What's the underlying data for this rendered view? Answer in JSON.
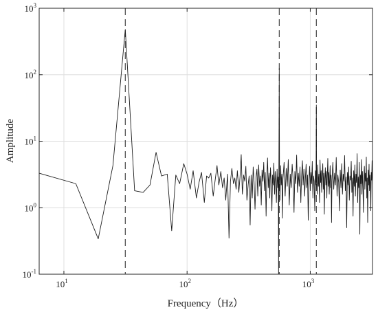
{
  "chart_data": {
    "type": "line",
    "title": "",
    "xlabel": "Frequency（Hz）",
    "ylabel": "Amplitude",
    "xscale": "log",
    "yscale": "log",
    "xlim": [
      6.3,
      3200
    ],
    "ylim": [
      0.1,
      1000
    ],
    "grid": true,
    "legend": "none",
    "x_ticks": [
      {
        "value": 10,
        "base": "10",
        "exp": "1"
      },
      {
        "value": 100,
        "base": "10",
        "exp": "2"
      },
      {
        "value": 1000,
        "base": "10",
        "exp": "3"
      }
    ],
    "y_ticks": [
      {
        "value": 0.1,
        "base": "10",
        "exp": "-1"
      },
      {
        "value": 1,
        "base": "10",
        "exp": "0"
      },
      {
        "value": 10,
        "base": "10",
        "exp": "1"
      },
      {
        "value": 100,
        "base": "10",
        "exp": "2"
      },
      {
        "value": 1000,
        "base": "10",
        "exp": "3"
      }
    ],
    "reference_lines_x": [
      31.5,
      560,
      1120
    ],
    "line_color": "#1a1a1a",
    "series": [
      {
        "values": [
          [
            6.3,
            3.3
          ],
          [
            12.5,
            2.3
          ],
          [
            19,
            0.34
          ],
          [
            25,
            4.3
          ],
          [
            31.5,
            480
          ],
          [
            37.5,
            1.8
          ],
          [
            44,
            1.7
          ],
          [
            50,
            2.2
          ],
          [
            56,
            6.8
          ],
          [
            62,
            3.0
          ],
          [
            69,
            3.2
          ],
          [
            75,
            0.45
          ],
          [
            81,
            3.1
          ],
          [
            87,
            2.3
          ],
          [
            94,
            4.6
          ],
          [
            100,
            3.2
          ],
          [
            106,
            1.9
          ],
          [
            112,
            3.6
          ],
          [
            119,
            1.4
          ],
          [
            125,
            2.4
          ],
          [
            131,
            3.4
          ],
          [
            138,
            1.2
          ],
          [
            144,
            3.0
          ],
          [
            150,
            2.8
          ],
          [
            156,
            3.3
          ],
          [
            163,
            1.5
          ],
          [
            169,
            2.6
          ],
          [
            175,
            4.3
          ],
          [
            181,
            2.2
          ],
          [
            188,
            3.5
          ],
          [
            194,
            2.0
          ],
          [
            200,
            2.8
          ],
          [
            206,
            1.3
          ],
          [
            213,
            3.2
          ],
          [
            219,
            0.35
          ],
          [
            225,
            2.5
          ],
          [
            231,
            3.9
          ],
          [
            238,
            2.3
          ],
          [
            244,
            2.8
          ],
          [
            250,
            1.9
          ],
          [
            256,
            3.6
          ],
          [
            263,
            1.7
          ],
          [
            269,
            2.9
          ],
          [
            275,
            6.3
          ],
          [
            281,
            1.6
          ],
          [
            288,
            3.1
          ],
          [
            294,
            2.5
          ],
          [
            300,
            4.2
          ],
          [
            306,
            1.3
          ],
          [
            313,
            2.2
          ],
          [
            319,
            3.0
          ],
          [
            325,
            0.55
          ],
          [
            331,
            3.1
          ],
          [
            338,
            1.4
          ],
          [
            344,
            4.1
          ],
          [
            350,
            2.4
          ],
          [
            356,
            0.95
          ],
          [
            363,
            2.9
          ],
          [
            369,
            3.8
          ],
          [
            375,
            1.5
          ],
          [
            381,
            4.4
          ],
          [
            388,
            2.1
          ],
          [
            394,
            3.0
          ],
          [
            400,
            1.1
          ],
          [
            406,
            3.7
          ],
          [
            413,
            2.5
          ],
          [
            419,
            4.8
          ],
          [
            425,
            1.8
          ],
          [
            431,
            3.4
          ],
          [
            438,
            0.75
          ],
          [
            444,
            2.9
          ],
          [
            450,
            5.6
          ],
          [
            456,
            2.0
          ],
          [
            463,
            3.3
          ],
          [
            469,
            1.4
          ],
          [
            475,
            4.0
          ],
          [
            481,
            2.6
          ],
          [
            488,
            0.9
          ],
          [
            494,
            3.1
          ],
          [
            500,
            2.2
          ],
          [
            506,
            4.7
          ],
          [
            513,
            1.6
          ],
          [
            519,
            3.5
          ],
          [
            525,
            2.4
          ],
          [
            531,
            1.2
          ],
          [
            538,
            3.8
          ],
          [
            544,
            2.0
          ],
          [
            550,
            2.9
          ],
          [
            553,
            0.1
          ],
          [
            556,
            3.5
          ],
          [
            560,
            125
          ],
          [
            563,
            2.5
          ],
          [
            567,
            1.3
          ],
          [
            575,
            4.3
          ],
          [
            581,
            2.2
          ],
          [
            588,
            3.2
          ],
          [
            594,
            0.7
          ],
          [
            600,
            2.7
          ],
          [
            613,
            4.8
          ],
          [
            625,
            1.5
          ],
          [
            638,
            3.9
          ],
          [
            650,
            2.1
          ],
          [
            663,
            5.3
          ],
          [
            675,
            1.1
          ],
          [
            688,
            3.2
          ],
          [
            700,
            2.0
          ],
          [
            713,
            4.5
          ],
          [
            725,
            2.7
          ],
          [
            738,
            0.85
          ],
          [
            750,
            3.5
          ],
          [
            763,
            2.3
          ],
          [
            775,
            6.2
          ],
          [
            788,
            1.7
          ],
          [
            800,
            3.3
          ],
          [
            813,
            2.1
          ],
          [
            825,
            4.1
          ],
          [
            838,
            1.2
          ],
          [
            850,
            3.0
          ],
          [
            863,
            5.1
          ],
          [
            875,
            2.2
          ],
          [
            888,
            3.8
          ],
          [
            900,
            1.5
          ],
          [
            913,
            2.8
          ],
          [
            925,
            4.5
          ],
          [
            938,
            2.0
          ],
          [
            950,
            3.1
          ],
          [
            963,
            0.65
          ],
          [
            975,
            2.6
          ],
          [
            988,
            4.2
          ],
          [
            1000,
            1.8
          ],
          [
            1013,
            3.4
          ],
          [
            1025,
            2.3
          ],
          [
            1038,
            5.0
          ],
          [
            1050,
            1.4
          ],
          [
            1063,
            3.0
          ],
          [
            1075,
            2.5
          ],
          [
            1088,
            0.9
          ],
          [
            1100,
            3.6
          ],
          [
            1113,
            2.2
          ],
          [
            1120,
            35
          ],
          [
            1125,
            2.6
          ],
          [
            1138,
            1.6
          ],
          [
            1150,
            4.4
          ],
          [
            1163,
            2.1
          ],
          [
            1175,
            3.2
          ],
          [
            1188,
            1.2
          ],
          [
            1200,
            5.2
          ],
          [
            1213,
            2.4
          ],
          [
            1225,
            3.6
          ],
          [
            1238,
            1.7
          ],
          [
            1250,
            2.9
          ],
          [
            1263,
            4.6
          ],
          [
            1275,
            1.9
          ],
          [
            1288,
            3.3
          ],
          [
            1300,
            0.8
          ],
          [
            1313,
            2.7
          ],
          [
            1325,
            4.0
          ],
          [
            1338,
            2.2
          ],
          [
            1350,
            3.5
          ],
          [
            1363,
            1.4
          ],
          [
            1375,
            3.0
          ],
          [
            1388,
            5.5
          ],
          [
            1400,
            2.1
          ],
          [
            1413,
            3.4
          ],
          [
            1425,
            1.6
          ],
          [
            1438,
            2.8
          ],
          [
            1450,
            4.3
          ],
          [
            1463,
            2.0
          ],
          [
            1475,
            3.1
          ],
          [
            1488,
            0.6
          ],
          [
            1500,
            2.5
          ],
          [
            1525,
            4.8
          ],
          [
            1550,
            1.9
          ],
          [
            1575,
            3.3
          ],
          [
            1600,
            2.2
          ],
          [
            1625,
            5.7
          ],
          [
            1650,
            1.5
          ],
          [
            1675,
            3.1
          ],
          [
            1700,
            2.4
          ],
          [
            1725,
            0.9
          ],
          [
            1750,
            3.7
          ],
          [
            1775,
            2.0
          ],
          [
            1800,
            4.6
          ],
          [
            1825,
            1.6
          ],
          [
            1850,
            3.2
          ],
          [
            1875,
            2.5
          ],
          [
            1900,
            6.1
          ],
          [
            1925,
            1.8
          ],
          [
            1950,
            2.9
          ],
          [
            1975,
            0.5
          ],
          [
            2000,
            3.4
          ],
          [
            2025,
            2.2
          ],
          [
            2050,
            4.1
          ],
          [
            2075,
            1.3
          ],
          [
            2100,
            3.0
          ],
          [
            2125,
            2.6
          ],
          [
            2150,
            5.0
          ],
          [
            2175,
            1.7
          ],
          [
            2200,
            2.8
          ],
          [
            2225,
            0.75
          ],
          [
            2250,
            3.6
          ],
          [
            2275,
            2.1
          ],
          [
            2300,
            4.4
          ],
          [
            2325,
            1.5
          ],
          [
            2350,
            3.2
          ],
          [
            2375,
            2.4
          ],
          [
            2400,
            6.5
          ],
          [
            2425,
            1.2
          ],
          [
            2450,
            2.9
          ],
          [
            2475,
            2.0
          ],
          [
            2500,
            4.8
          ],
          [
            2525,
            0.4
          ],
          [
            2550,
            3.1
          ],
          [
            2575,
            2.3
          ],
          [
            2600,
            5.3
          ],
          [
            2625,
            1.6
          ],
          [
            2650,
            3.5
          ],
          [
            2675,
            2.1
          ],
          [
            2700,
            0.85
          ],
          [
            2725,
            3.0
          ],
          [
            2750,
            4.2
          ],
          [
            2775,
            1.9
          ],
          [
            2800,
            3.3
          ],
          [
            2825,
            2.5
          ],
          [
            2850,
            5.8
          ],
          [
            2875,
            1.4
          ],
          [
            2900,
            2.8
          ],
          [
            2925,
            0.6
          ],
          [
            2950,
            3.7
          ],
          [
            2975,
            2.2
          ],
          [
            3000,
            4.5
          ],
          [
            3025,
            1.8
          ],
          [
            3050,
            3.1
          ],
          [
            3075,
            2.4
          ],
          [
            3100,
            0.9
          ],
          [
            3125,
            3.4
          ],
          [
            3150,
            2.6
          ],
          [
            3175,
            5.1
          ],
          [
            3200,
            2.0
          ]
        ]
      }
    ]
  }
}
